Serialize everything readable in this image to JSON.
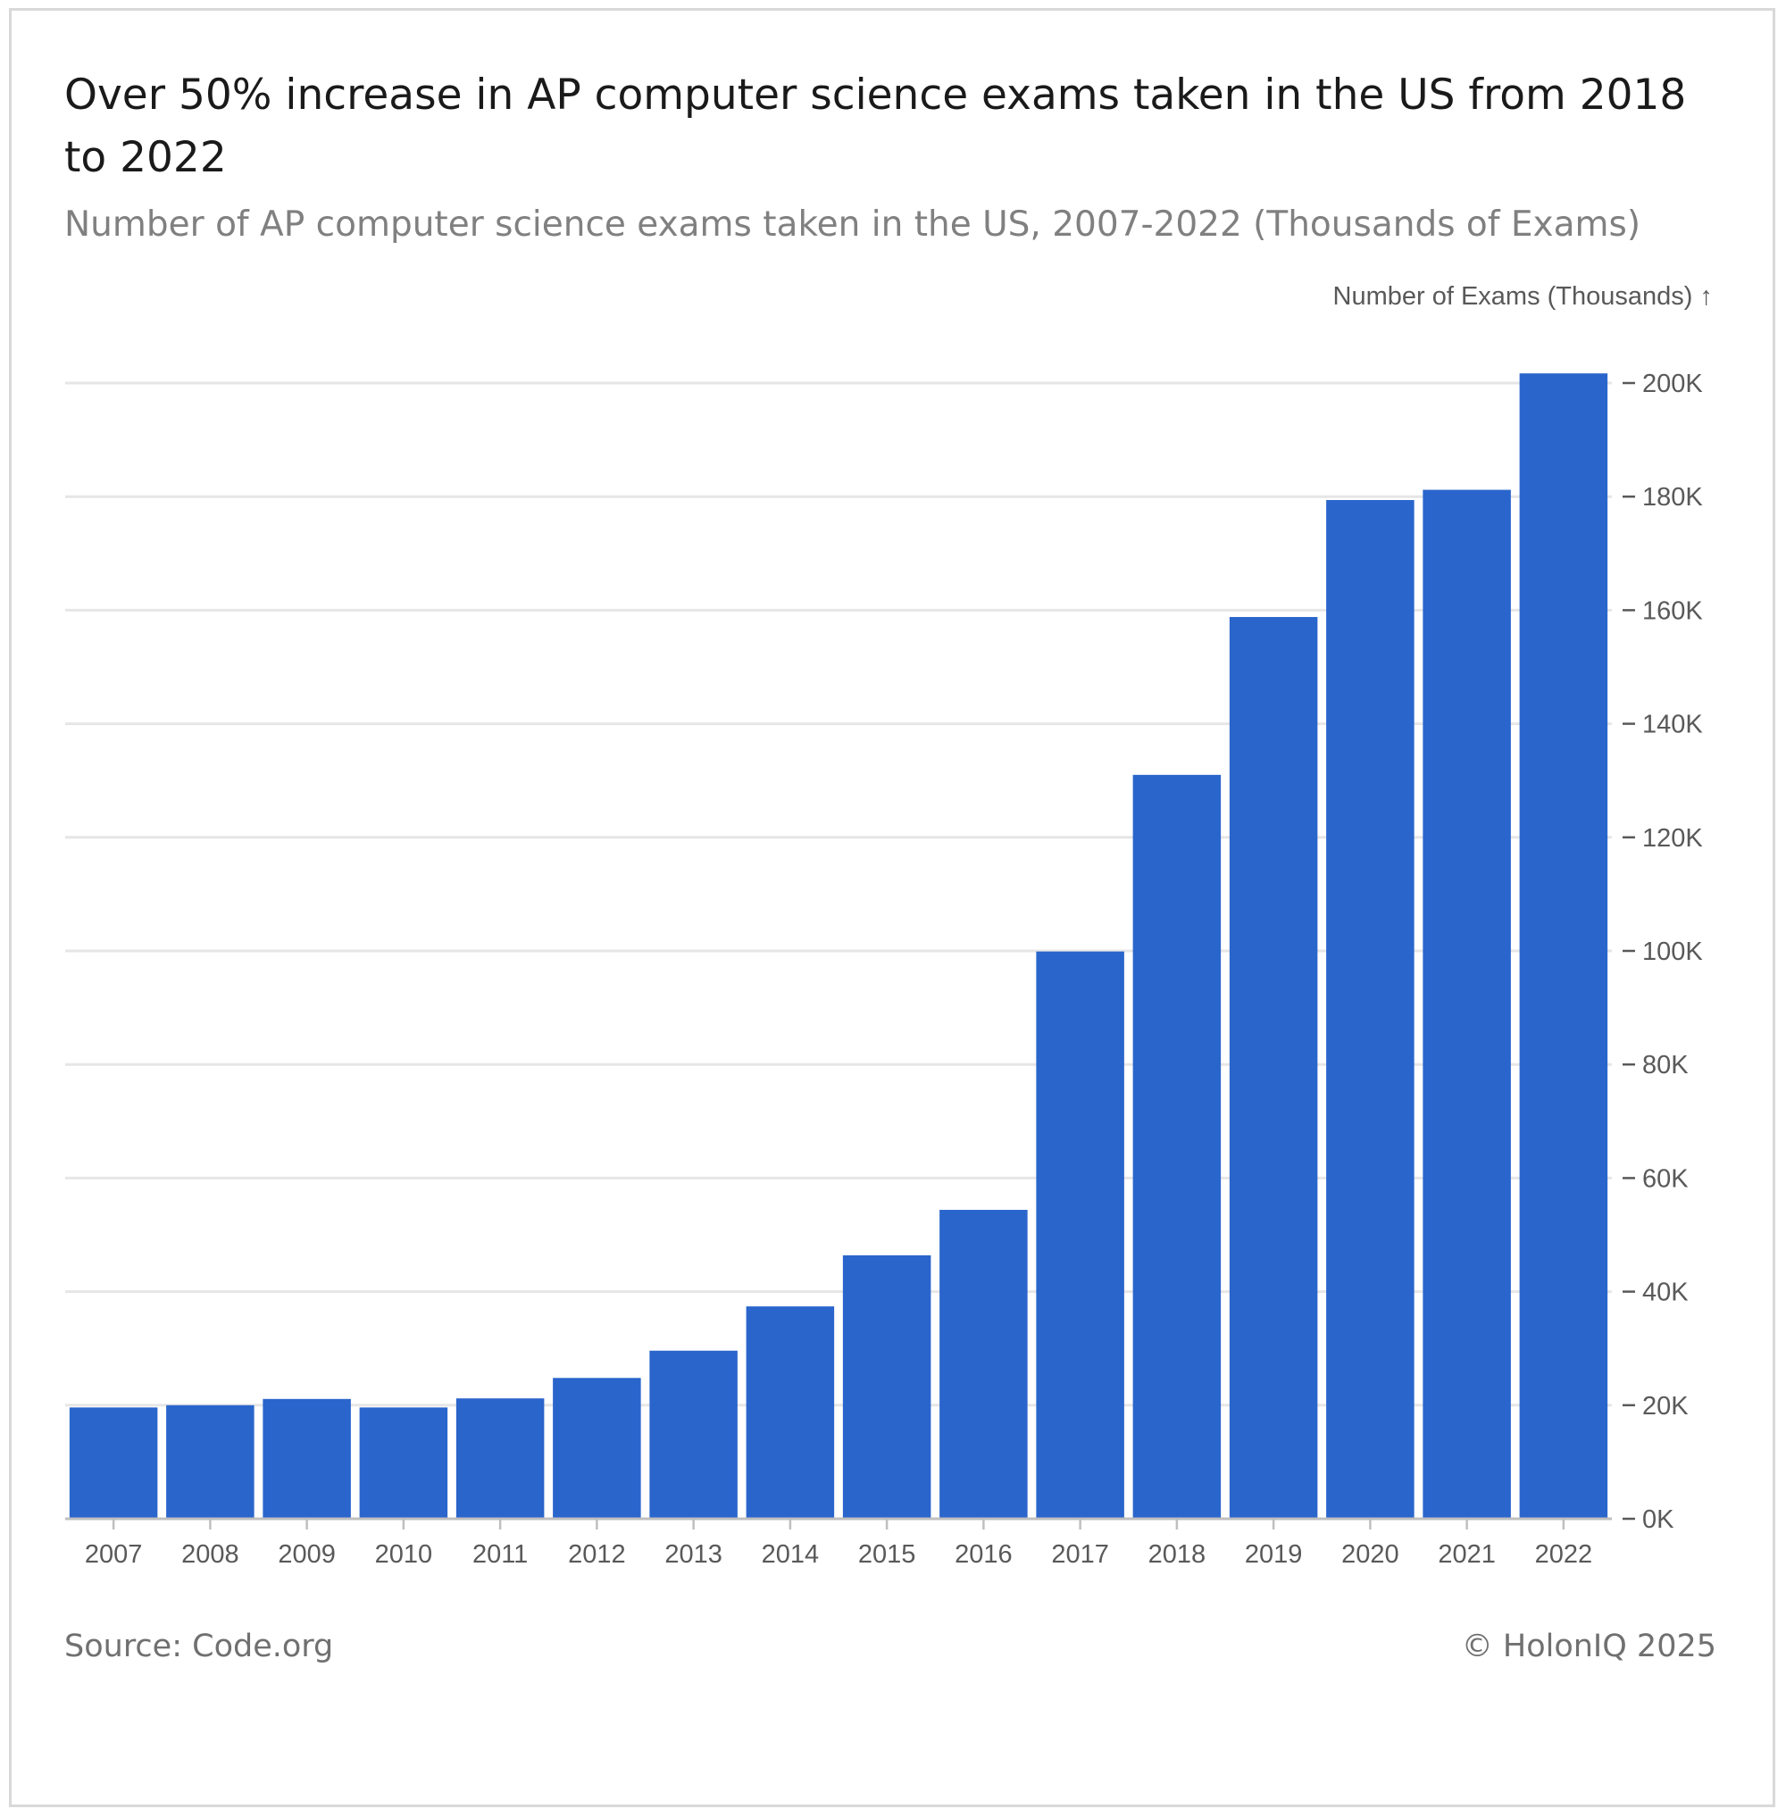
{
  "header": {
    "title": "Over 50% increase in AP computer science exams taken in the US from 2018 to 2022",
    "subtitle": "Number of AP computer science exams taken in the US, 2007-2022 (Thousands of Exams)"
  },
  "footer": {
    "source": "Source: Code.org",
    "credit": "© HolonIQ 2025"
  },
  "colors": {
    "bar": "#2a65cc",
    "grid": "#e6e6e6",
    "axis": "#bfbfbf",
    "tick_text": "#595959"
  },
  "chart_data": {
    "type": "bar",
    "title": "Over 50% increase in AP computer science exams taken in the US from 2018 to 2022",
    "subtitle": "Number of AP computer science exams taken in the US, 2007-2022 (Thousands of Exams)",
    "xlabel": "",
    "ylabel": "Number of Exams (Thousands) ↑",
    "y_axis_position": "right",
    "categories": [
      "2007",
      "2008",
      "2009",
      "2010",
      "2011",
      "2012",
      "2013",
      "2014",
      "2015",
      "2016",
      "2017",
      "2018",
      "2019",
      "2020",
      "2021",
      "2022"
    ],
    "series": [
      {
        "values": [
          19.6,
          20.0,
          21.1,
          19.6,
          21.2,
          24.8,
          29.6,
          37.4,
          46.4,
          54.4,
          99.9,
          131.0,
          158.8,
          179.4,
          181.2,
          201.7
        ]
      }
    ],
    "ylim": [
      0,
      200
    ],
    "yticks": [
      0,
      20,
      40,
      60,
      80,
      100,
      120,
      140,
      160,
      180,
      200
    ],
    "ytick_labels": [
      "0K",
      "20K",
      "40K",
      "60K",
      "80K",
      "100K",
      "120K",
      "140K",
      "160K",
      "180K",
      "200K"
    ],
    "grid": true,
    "legend": "none"
  }
}
